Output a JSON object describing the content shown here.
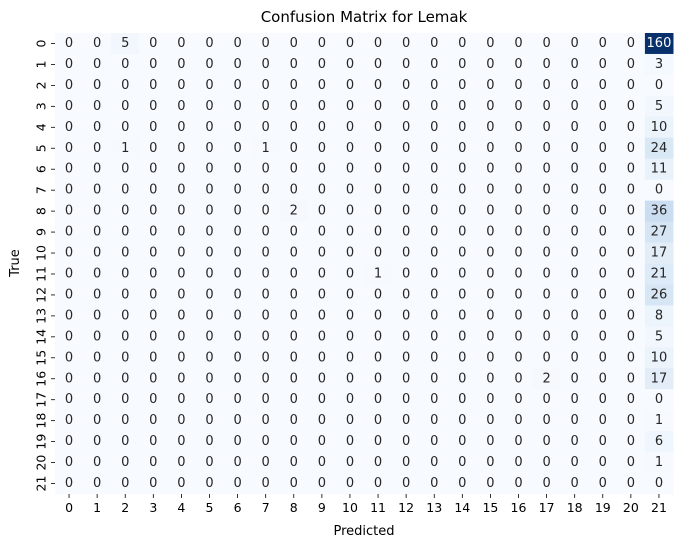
{
  "chart_data": {
    "type": "heatmap",
    "title": "Confusion Matrix for Lemak",
    "xlabel": "Predicted",
    "ylabel": "True",
    "x_categories": [
      "0",
      "1",
      "2",
      "3",
      "4",
      "5",
      "6",
      "7",
      "8",
      "9",
      "10",
      "11",
      "12",
      "13",
      "14",
      "15",
      "16",
      "17",
      "18",
      "19",
      "20",
      "21"
    ],
    "y_categories": [
      "0",
      "1",
      "2",
      "3",
      "4",
      "5",
      "6",
      "7",
      "8",
      "9",
      "10",
      "11",
      "12",
      "13",
      "14",
      "15",
      "16",
      "17",
      "18",
      "19",
      "20",
      "21"
    ],
    "colormap": "Blues",
    "colorbar": false,
    "annotated": true,
    "vmin": 0,
    "vmax": 160,
    "matrix": [
      [
        0,
        0,
        5,
        0,
        0,
        0,
        0,
        0,
        0,
        0,
        0,
        0,
        0,
        0,
        0,
        0,
        0,
        0,
        0,
        0,
        0,
        160
      ],
      [
        0,
        0,
        0,
        0,
        0,
        0,
        0,
        0,
        0,
        0,
        0,
        0,
        0,
        0,
        0,
        0,
        0,
        0,
        0,
        0,
        0,
        3
      ],
      [
        0,
        0,
        0,
        0,
        0,
        0,
        0,
        0,
        0,
        0,
        0,
        0,
        0,
        0,
        0,
        0,
        0,
        0,
        0,
        0,
        0,
        0
      ],
      [
        0,
        0,
        0,
        0,
        0,
        0,
        0,
        0,
        0,
        0,
        0,
        0,
        0,
        0,
        0,
        0,
        0,
        0,
        0,
        0,
        0,
        5
      ],
      [
        0,
        0,
        0,
        0,
        0,
        0,
        0,
        0,
        0,
        0,
        0,
        0,
        0,
        0,
        0,
        0,
        0,
        0,
        0,
        0,
        0,
        10
      ],
      [
        0,
        0,
        1,
        0,
        0,
        0,
        0,
        1,
        0,
        0,
        0,
        0,
        0,
        0,
        0,
        0,
        0,
        0,
        0,
        0,
        0,
        24
      ],
      [
        0,
        0,
        0,
        0,
        0,
        0,
        0,
        0,
        0,
        0,
        0,
        0,
        0,
        0,
        0,
        0,
        0,
        0,
        0,
        0,
        0,
        11
      ],
      [
        0,
        0,
        0,
        0,
        0,
        0,
        0,
        0,
        0,
        0,
        0,
        0,
        0,
        0,
        0,
        0,
        0,
        0,
        0,
        0,
        0,
        0
      ],
      [
        0,
        0,
        0,
        0,
        0,
        0,
        0,
        0,
        2,
        0,
        0,
        0,
        0,
        0,
        0,
        0,
        0,
        0,
        0,
        0,
        0,
        36
      ],
      [
        0,
        0,
        0,
        0,
        0,
        0,
        0,
        0,
        0,
        0,
        0,
        0,
        0,
        0,
        0,
        0,
        0,
        0,
        0,
        0,
        0,
        27
      ],
      [
        0,
        0,
        0,
        0,
        0,
        0,
        0,
        0,
        0,
        0,
        0,
        0,
        0,
        0,
        0,
        0,
        0,
        0,
        0,
        0,
        0,
        17
      ],
      [
        0,
        0,
        0,
        0,
        0,
        0,
        0,
        0,
        0,
        0,
        0,
        1,
        0,
        0,
        0,
        0,
        0,
        0,
        0,
        0,
        0,
        21
      ],
      [
        0,
        0,
        0,
        0,
        0,
        0,
        0,
        0,
        0,
        0,
        0,
        0,
        0,
        0,
        0,
        0,
        0,
        0,
        0,
        0,
        0,
        26
      ],
      [
        0,
        0,
        0,
        0,
        0,
        0,
        0,
        0,
        0,
        0,
        0,
        0,
        0,
        0,
        0,
        0,
        0,
        0,
        0,
        0,
        0,
        8
      ],
      [
        0,
        0,
        0,
        0,
        0,
        0,
        0,
        0,
        0,
        0,
        0,
        0,
        0,
        0,
        0,
        0,
        0,
        0,
        0,
        0,
        0,
        5
      ],
      [
        0,
        0,
        0,
        0,
        0,
        0,
        0,
        0,
        0,
        0,
        0,
        0,
        0,
        0,
        0,
        0,
        0,
        0,
        0,
        0,
        0,
        10
      ],
      [
        0,
        0,
        0,
        0,
        0,
        0,
        0,
        0,
        0,
        0,
        0,
        0,
        0,
        0,
        0,
        0,
        0,
        2,
        0,
        0,
        0,
        17
      ],
      [
        0,
        0,
        0,
        0,
        0,
        0,
        0,
        0,
        0,
        0,
        0,
        0,
        0,
        0,
        0,
        0,
        0,
        0,
        0,
        0,
        0,
        0
      ],
      [
        0,
        0,
        0,
        0,
        0,
        0,
        0,
        0,
        0,
        0,
        0,
        0,
        0,
        0,
        0,
        0,
        0,
        0,
        0,
        0,
        0,
        1
      ],
      [
        0,
        0,
        0,
        0,
        0,
        0,
        0,
        0,
        0,
        0,
        0,
        0,
        0,
        0,
        0,
        0,
        0,
        0,
        0,
        0,
        0,
        6
      ],
      [
        0,
        0,
        0,
        0,
        0,
        0,
        0,
        0,
        0,
        0,
        0,
        0,
        0,
        0,
        0,
        0,
        0,
        0,
        0,
        0,
        0,
        1
      ],
      [
        0,
        0,
        0,
        0,
        0,
        0,
        0,
        0,
        0,
        0,
        0,
        0,
        0,
        0,
        0,
        0,
        0,
        0,
        0,
        0,
        0,
        0
      ]
    ]
  }
}
